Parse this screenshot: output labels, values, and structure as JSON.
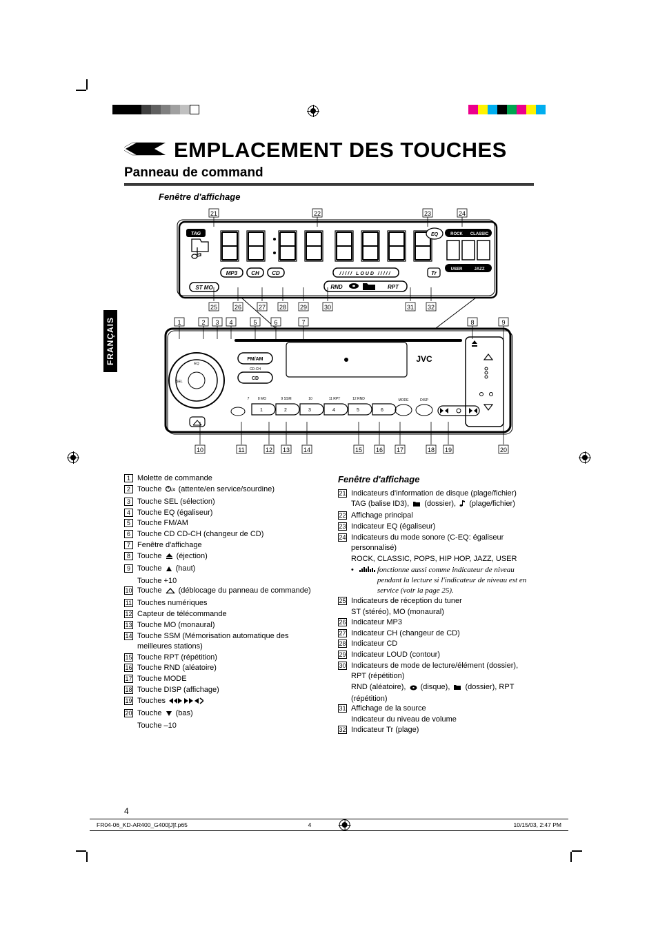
{
  "colorBars": {
    "bw": [
      "#000000",
      "#000000",
      "#000000",
      "#404040",
      "#606060",
      "#808080",
      "#a0a0a0",
      "#c0c0c0",
      "#ffffff"
    ],
    "cmyk": [
      "#ec008c",
      "#fff200",
      "#00aeef",
      "#000000",
      "#00a651",
      "#ec008c",
      "#fff200",
      "#00aeef"
    ]
  },
  "langTab": "FRANÇAIS",
  "title": "EMPLACEMENT DES TOUCHES",
  "subtitle": "Panneau de command",
  "diagramLabel": "Fenêtre d'affichage",
  "diagram": {
    "topNumbers": [
      "21",
      "22",
      "23",
      "24"
    ],
    "topNumbersX": [
      80,
      230,
      390,
      440
    ],
    "midNumbers": [
      "25",
      "26",
      "27",
      "28",
      "29",
      "30",
      "31",
      "32"
    ],
    "midNumbersX": [
      80,
      115,
      150,
      180,
      210,
      245,
      365,
      395
    ],
    "panelTopNumbers": [
      "1",
      "2",
      "3",
      "4",
      "5",
      "6",
      "7",
      "8",
      "9"
    ],
    "panelTopX": [
      30,
      65,
      85,
      105,
      140,
      170,
      210,
      455,
      500
    ],
    "panelBottomNumbers": [
      "10",
      "11",
      "12",
      "13",
      "14",
      "15",
      "16",
      "17",
      "18",
      "19",
      "20"
    ],
    "panelBottomX": [
      60,
      120,
      160,
      185,
      215,
      290,
      320,
      350,
      395,
      420,
      500
    ],
    "displayLabels": {
      "tag": "TAG",
      "mp3": "MP3",
      "ch": "CH",
      "cd": "CD",
      "stmo": "ST MO",
      "rnd": "RND",
      "rpt": "RPT",
      "eq": "EQ",
      "tr": "Tr",
      "rock": "ROCK",
      "classic": "CLASSIC",
      "pops": "POPS",
      "user": "USER",
      "jazz": "JAZZ",
      "loud": "LOUD",
      "hip": "HIP HOP"
    },
    "brand": "JVC",
    "panelLabels": {
      "fmam": "FM/AM",
      "cd": "CD",
      "eq": "EQ",
      "sel": "SEL",
      "cdch": "CD-CH",
      "mode": "MODE",
      "disp": "DISP",
      "mo": "8 MO",
      "ssm": "9 SSM",
      "ten": "10",
      "rpt": "11 RPT",
      "rnd": "12 RND"
    }
  },
  "leftItems": [
    {
      "n": "1",
      "t": "Molette de commande"
    },
    {
      "n": "2",
      "t": "Touche ",
      "icon": "standby",
      "after": " (attente/en service/sourdine)"
    },
    {
      "n": "3",
      "t": "Touche SEL (sélection)"
    },
    {
      "n": "4",
      "t": "Touche EQ (égaliseur)"
    },
    {
      "n": "5",
      "t": "Touche FM/AM"
    },
    {
      "n": "6",
      "t": "Touche CD CD-CH (changeur de CD)"
    },
    {
      "n": "7",
      "t": "Fenêtre d'affichage"
    },
    {
      "n": "8",
      "t": "Touche ",
      "icon": "eject",
      "after": " (éjection)"
    },
    {
      "n": "9",
      "t": "Touche ",
      "icon": "up",
      "after": " (haut)",
      "cont": "Touche +10"
    },
    {
      "n": "10",
      "t": "Touche ",
      "icon": "release",
      "after": " (déblocage du panneau de commande)"
    },
    {
      "n": "11",
      "t": "Touches numériques"
    },
    {
      "n": "12",
      "t": "Capteur de télécommande"
    },
    {
      "n": "13",
      "t": "Touche MO (monaural)"
    },
    {
      "n": "14",
      "t": "Touche SSM (Mémorisation automatique des meilleures stations)"
    },
    {
      "n": "15",
      "t": "Touche RPT (répétition)"
    },
    {
      "n": "16",
      "t": "Touche RND (aléatoire)"
    },
    {
      "n": "17",
      "t": "Touche MODE"
    },
    {
      "n": "18",
      "t": "Touche DISP (affichage)"
    },
    {
      "n": "19",
      "t": "Touches ",
      "icon": "seek"
    },
    {
      "n": "20",
      "t": "Touche ",
      "icon": "down",
      "after": " (bas)",
      "cont": "Touche –10"
    }
  ],
  "rightHeading": "Fenêtre d'affichage",
  "rightItems": [
    {
      "n": "21",
      "t": "Indicateurs d'information de disque",
      "cont": "TAG (balise ID3), ",
      "icon1": "folder",
      "mid": " (dossier), ",
      "icon2": "note",
      "after": " (plage/fichier)"
    },
    {
      "n": "22",
      "t": "Affichage principal"
    },
    {
      "n": "23",
      "t": "Indicateur EQ (égaliseur)"
    },
    {
      "n": "24",
      "t": "Indicateurs du mode sonore (C-EQ: égaliseur personnalisé)",
      "cont2": "ROCK, CLASSIC, POPS, HIP HOP, JAZZ, USER",
      "note": "fonctionne aussi comme indicateur de niveau pendant la lecture si l'indicateur de niveau est en service (voir la page 25)."
    },
    {
      "n": "25",
      "t": "Indicateurs de réception du tuner",
      "cont2": "ST (stéréo), MO (monaural)"
    },
    {
      "n": "26",
      "t": "Indicateur MP3"
    },
    {
      "n": "27",
      "t": "Indicateur CH (changeur de CD)"
    },
    {
      "n": "28",
      "t": "Indicateur CD"
    },
    {
      "n": "29",
      "t": "Indicateur LOUD (contour)"
    },
    {
      "n": "30",
      "t": "Indicateurs de mode de lecture/élément",
      "cont": "RND (aléatoire), ",
      "icon1": "disc",
      "mid": " (disque), ",
      "icon2": "folder",
      "after": " (dossier), RPT (répétition)"
    },
    {
      "n": "31",
      "t": "Affichage de la source",
      "cont2": "Indicateur du niveau de volume"
    },
    {
      "n": "32",
      "t": "Indicateur Tr (plage)"
    }
  ],
  "pageNumber": "4",
  "footer": {
    "file": "FR04-06_KD-AR400_G400[J]f.p65",
    "pg": "4",
    "date": "10/15/03, 2:47 PM"
  }
}
